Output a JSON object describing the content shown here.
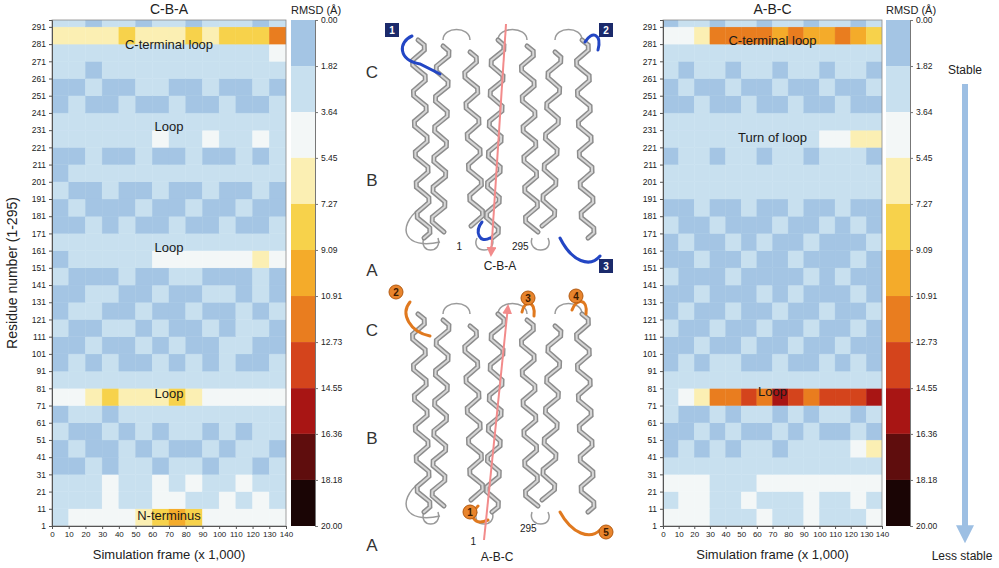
{
  "chart_data": [
    {
      "type": "heatmap",
      "title": "C-B-A",
      "xlabel": "Simulation frame (x 1,000)",
      "ylabel": "Residue number (1-295)",
      "xlim": [
        0,
        140
      ],
      "ylim": [
        1,
        295
      ],
      "xticks": [
        0,
        10,
        20,
        30,
        40,
        50,
        60,
        70,
        80,
        90,
        100,
        110,
        120,
        130,
        140
      ],
      "yticks": [
        1,
        11,
        21,
        31,
        41,
        51,
        61,
        71,
        81,
        91,
        101,
        111,
        121,
        131,
        141,
        151,
        161,
        171,
        181,
        191,
        201,
        211,
        221,
        231,
        241,
        251,
        261,
        271,
        281,
        291
      ],
      "xbins": [
        0,
        10,
        20,
        30,
        40,
        50,
        60,
        70,
        80,
        90,
        100,
        110,
        120,
        130,
        140
      ],
      "ybins": [
        1,
        11,
        21,
        31,
        41,
        51,
        61,
        71,
        81,
        91,
        101,
        111,
        121,
        131,
        141,
        151,
        161,
        171,
        181,
        191,
        201,
        211,
        221,
        231,
        241,
        251,
        261,
        271,
        281,
        291,
        295
      ],
      "z": [
        [
          3,
          4,
          5,
          4,
          5,
          6,
          9,
          10,
          9,
          5,
          5,
          4,
          5,
          4
        ],
        [
          2,
          3,
          3,
          4,
          3,
          3,
          4,
          4,
          3,
          3,
          4,
          3,
          4,
          3
        ],
        [
          2,
          2,
          3,
          4,
          3,
          3,
          4,
          3,
          4,
          3,
          3,
          4,
          3,
          3
        ],
        [
          1,
          1,
          2,
          1,
          2,
          2,
          1,
          2,
          2,
          1,
          2,
          2,
          1,
          2
        ],
        [
          1,
          2,
          1,
          1,
          2,
          1,
          2,
          1,
          1,
          2,
          1,
          2,
          2,
          1
        ],
        [
          2,
          1,
          1,
          2,
          1,
          2,
          1,
          2,
          2,
          1,
          2,
          1,
          2,
          2
        ],
        [
          1,
          2,
          2,
          1,
          2,
          2,
          3,
          2,
          2,
          3,
          2,
          2,
          3,
          2
        ],
        [
          4,
          5,
          7,
          8,
          7,
          7,
          6,
          8,
          7,
          5,
          5,
          4,
          5,
          5
        ],
        [
          2,
          2,
          3,
          2,
          2,
          3,
          2,
          3,
          2,
          2,
          3,
          2,
          2,
          3
        ],
        [
          1,
          2,
          1,
          2,
          1,
          1,
          2,
          1,
          2,
          1,
          2,
          1,
          1,
          2
        ],
        [
          1,
          1,
          2,
          1,
          1,
          2,
          1,
          2,
          1,
          1,
          2,
          2,
          1,
          1
        ],
        [
          2,
          1,
          1,
          2,
          2,
          1,
          2,
          1,
          1,
          2,
          1,
          2,
          2,
          1
        ],
        [
          1,
          2,
          2,
          1,
          1,
          2,
          1,
          1,
          2,
          1,
          1,
          2,
          1,
          2
        ],
        [
          1,
          1,
          2,
          2,
          1,
          1,
          2,
          1,
          1,
          2,
          2,
          1,
          2,
          1
        ],
        [
          2,
          1,
          1,
          1,
          2,
          1,
          1,
          2,
          2,
          1,
          1,
          1,
          2,
          1
        ],
        [
          1,
          2,
          3,
          2,
          2,
          3,
          4,
          4,
          5,
          5,
          4,
          5,
          6,
          5
        ],
        [
          2,
          2,
          2,
          3,
          2,
          3,
          3,
          2,
          3,
          3,
          2,
          3,
          3,
          2
        ],
        [
          1,
          1,
          2,
          1,
          2,
          1,
          1,
          2,
          1,
          1,
          2,
          1,
          1,
          2
        ],
        [
          1,
          2,
          1,
          1,
          1,
          2,
          1,
          1,
          2,
          1,
          1,
          2,
          1,
          1
        ],
        [
          2,
          1,
          1,
          2,
          1,
          1,
          2,
          1,
          1,
          2,
          1,
          1,
          2,
          1
        ],
        [
          1,
          2,
          2,
          2,
          3,
          2,
          2,
          3,
          2,
          2,
          2,
          3,
          2,
          2
        ],
        [
          1,
          1,
          2,
          1,
          1,
          2,
          1,
          1,
          2,
          1,
          1,
          2,
          1,
          2
        ],
        [
          2,
          3,
          3,
          2,
          3,
          3,
          4,
          3,
          3,
          4,
          3,
          3,
          4,
          3
        ],
        [
          2,
          2,
          3,
          3,
          2,
          3,
          3,
          2,
          3,
          3,
          3,
          2,
          3,
          3
        ],
        [
          1,
          2,
          1,
          1,
          2,
          1,
          1,
          2,
          1,
          1,
          2,
          1,
          1,
          2
        ],
        [
          1,
          1,
          2,
          1,
          1,
          2,
          2,
          1,
          1,
          2,
          1,
          1,
          2,
          1
        ],
        [
          2,
          2,
          1,
          2,
          2,
          3,
          2,
          2,
          3,
          2,
          2,
          3,
          2,
          2
        ],
        [
          3,
          2,
          3,
          3,
          2,
          3,
          3,
          3,
          2,
          3,
          3,
          3,
          3,
          4
        ],
        [
          6,
          7,
          6,
          7,
          8,
          7,
          6,
          7,
          8,
          7,
          8,
          8,
          9,
          11
        ],
        [
          2,
          2,
          1,
          2,
          2,
          1,
          2,
          2,
          1,
          2,
          2,
          2,
          1,
          2
        ]
      ],
      "annotations": [
        {
          "text": "C-terminal loop",
          "y": 281
        },
        {
          "text": "Loop",
          "y": 233
        },
        {
          "text": "Loop",
          "y": 163
        },
        {
          "text": "Loop",
          "y": 78
        },
        {
          "text": "N-terminus",
          "y": 7
        }
      ],
      "colorbar": {
        "title": "RMSD (Å)",
        "range": [
          0,
          20
        ],
        "ticks": [
          {
            "value": 0,
            "label": "0.00"
          },
          {
            "value": 1.82,
            "label": "1.82"
          },
          {
            "value": 3.64,
            "label": "3.64"
          },
          {
            "value": 5.45,
            "label": "5.45"
          },
          {
            "value": 7.27,
            "label": "7.27"
          },
          {
            "value": 9.09,
            "label": "9.09"
          },
          {
            "value": 10.91,
            "label": "10.91"
          },
          {
            "value": 12.73,
            "label": "12.73"
          },
          {
            "value": 14.55,
            "label": "14.55"
          },
          {
            "value": 16.36,
            "label": "16.36"
          },
          {
            "value": 18.18,
            "label": "18.18"
          },
          {
            "value": 20,
            "label": "20.00"
          }
        ],
        "colors": [
          "#a4c5e4",
          "#c8e0ef",
          "#f3f7f7",
          "#fbefb3",
          "#f7d24b",
          "#f4ab2a",
          "#e97d1f",
          "#d4441c",
          "#a81514",
          "#5f0d0d",
          "#1a0505"
        ]
      }
    },
    {
      "type": "heatmap",
      "title": "A-B-C",
      "xlabel": "Simulation frame (x 1,000)",
      "xlim": [
        0,
        140
      ],
      "ylim": [
        1,
        295
      ],
      "xticks": [
        0,
        10,
        20,
        30,
        40,
        50,
        60,
        70,
        80,
        90,
        100,
        110,
        120,
        130,
        140
      ],
      "yticks": [
        1,
        11,
        21,
        31,
        41,
        51,
        61,
        71,
        81,
        91,
        101,
        111,
        121,
        131,
        141,
        151,
        161,
        171,
        181,
        191,
        201,
        211,
        221,
        231,
        241,
        251,
        261,
        271,
        281,
        291
      ],
      "xbins": [
        0,
        10,
        20,
        30,
        40,
        50,
        60,
        70,
        80,
        90,
        100,
        110,
        120,
        130,
        140
      ],
      "ybins": [
        1,
        11,
        21,
        31,
        41,
        51,
        61,
        71,
        81,
        91,
        101,
        111,
        121,
        131,
        141,
        151,
        161,
        171,
        181,
        191,
        201,
        211,
        221,
        231,
        241,
        251,
        261,
        271,
        281,
        291,
        295
      ],
      "z": [
        [
          5,
          4,
          4,
          3,
          3,
          3,
          4,
          3,
          3,
          4,
          3,
          3,
          3,
          4
        ],
        [
          3,
          4,
          5,
          3,
          3,
          4,
          3,
          3,
          3,
          4,
          3,
          3,
          4,
          3
        ],
        [
          4,
          5,
          5,
          3,
          3,
          3,
          4,
          4,
          5,
          4,
          4,
          5,
          4,
          4
        ],
        [
          2,
          2,
          2,
          2,
          3,
          2,
          2,
          3,
          2,
          2,
          3,
          2,
          2,
          3
        ],
        [
          1,
          2,
          1,
          2,
          1,
          2,
          2,
          1,
          2,
          2,
          2,
          3,
          5,
          6
        ],
        [
          1,
          1,
          2,
          1,
          2,
          1,
          1,
          2,
          1,
          2,
          1,
          1,
          2,
          1
        ],
        [
          2,
          1,
          1,
          2,
          1,
          2,
          2,
          1,
          2,
          1,
          2,
          2,
          1,
          2
        ],
        [
          3,
          4,
          6,
          11,
          12,
          13,
          12,
          15,
          14,
          12,
          13,
          13,
          14,
          15
        ],
        [
          2,
          2,
          2,
          3,
          3,
          2,
          3,
          3,
          2,
          3,
          3,
          2,
          3,
          3
        ],
        [
          1,
          2,
          1,
          2,
          2,
          1,
          1,
          2,
          1,
          1,
          2,
          1,
          2,
          1
        ],
        [
          1,
          1,
          2,
          1,
          1,
          2,
          1,
          1,
          2,
          1,
          1,
          2,
          1,
          1
        ],
        [
          2,
          1,
          1,
          2,
          1,
          1,
          2,
          1,
          1,
          2,
          1,
          1,
          2,
          1
        ],
        [
          1,
          2,
          1,
          1,
          2,
          1,
          1,
          2,
          1,
          1,
          2,
          1,
          1,
          2
        ],
        [
          1,
          1,
          2,
          1,
          1,
          1,
          2,
          1,
          2,
          1,
          1,
          1,
          2,
          1
        ],
        [
          2,
          1,
          1,
          1,
          2,
          1,
          1,
          1,
          1,
          2,
          1,
          2,
          1,
          1
        ],
        [
          1,
          1,
          2,
          1,
          1,
          2,
          1,
          1,
          2,
          1,
          1,
          1,
          2,
          1
        ],
        [
          1,
          2,
          1,
          1,
          2,
          1,
          2,
          1,
          1,
          2,
          1,
          1,
          1,
          2
        ],
        [
          2,
          1,
          1,
          2,
          1,
          1,
          1,
          2,
          1,
          1,
          2,
          1,
          2,
          1
        ],
        [
          1,
          1,
          2,
          1,
          1,
          2,
          1,
          1,
          2,
          1,
          1,
          2,
          1,
          1
        ],
        [
          2,
          2,
          3,
          2,
          2,
          3,
          2,
          2,
          3,
          2,
          2,
          3,
          2,
          2
        ],
        [
          2,
          3,
          3,
          3,
          2,
          3,
          3,
          3,
          2,
          3,
          3,
          3,
          3,
          2
        ],
        [
          1,
          2,
          2,
          1,
          2,
          2,
          1,
          2,
          2,
          1,
          2,
          2,
          2,
          1
        ],
        [
          2,
          2,
          3,
          2,
          3,
          3,
          3,
          3,
          3,
          3,
          4,
          5,
          6,
          6
        ],
        [
          2,
          2,
          2,
          3,
          2,
          2,
          3,
          2,
          2,
          3,
          2,
          2,
          3,
          2
        ],
        [
          1,
          1,
          2,
          1,
          1,
          2,
          1,
          1,
          2,
          1,
          1,
          2,
          1,
          1
        ],
        [
          1,
          2,
          1,
          1,
          2,
          1,
          1,
          2,
          1,
          1,
          2,
          1,
          1,
          2
        ],
        [
          2,
          1,
          2,
          2,
          1,
          2,
          2,
          1,
          2,
          2,
          1,
          2,
          2,
          1
        ],
        [
          2,
          2,
          3,
          2,
          2,
          3,
          2,
          2,
          3,
          2,
          3,
          2,
          3,
          3
        ],
        [
          5,
          5,
          6,
          11,
          12,
          12,
          11,
          10,
          11,
          10,
          10,
          11,
          10,
          9
        ],
        [
          1,
          2,
          2,
          1,
          2,
          2,
          1,
          2,
          2,
          1,
          2,
          2,
          1,
          2
        ]
      ],
      "annotations": [
        {
          "text": "C-terminal loop",
          "y": 283
        },
        {
          "text": "Turn of loop",
          "y": 227
        },
        {
          "text": "Loop",
          "y": 79
        }
      ],
      "colorbar": {
        "title": "RMSD (Å)",
        "range": [
          0,
          20
        ],
        "ticks": [
          {
            "value": 0,
            "label": "0.00"
          },
          {
            "value": 1.82,
            "label": "1.82"
          },
          {
            "value": 3.64,
            "label": "3.64"
          },
          {
            "value": 5.45,
            "label": "5.45"
          },
          {
            "value": 7.27,
            "label": "7.27"
          },
          {
            "value": 9.09,
            "label": "9.09"
          },
          {
            "value": 10.91,
            "label": "10.91"
          },
          {
            "value": 12.73,
            "label": "12.73"
          },
          {
            "value": 14.55,
            "label": "14.55"
          },
          {
            "value": 16.36,
            "label": "16.36"
          },
          {
            "value": 18.18,
            "label": "18.18"
          },
          {
            "value": 20,
            "label": "20.00"
          }
        ],
        "colors": [
          "#a4c5e4",
          "#c8e0ef",
          "#f3f7f7",
          "#fbefb3",
          "#f7d24b",
          "#f4ab2a",
          "#e97d1f",
          "#d4441c",
          "#a81514",
          "#5f0d0d",
          "#1a0505"
        ],
        "notes": [
          "Stable",
          "Less stable"
        ]
      }
    }
  ],
  "diagram": {
    "structures": [
      {
        "label": "C-B-A",
        "segments": [
          "C",
          "B",
          "A"
        ],
        "start": 1,
        "end": 295,
        "markers": [
          "1",
          "2",
          "3"
        ]
      },
      {
        "label": "A-B-C",
        "segments": [
          "C",
          "B",
          "A"
        ],
        "start": 1,
        "end": 295,
        "markers": [
          "1",
          "2",
          "3",
          "4",
          "5"
        ]
      }
    ]
  }
}
